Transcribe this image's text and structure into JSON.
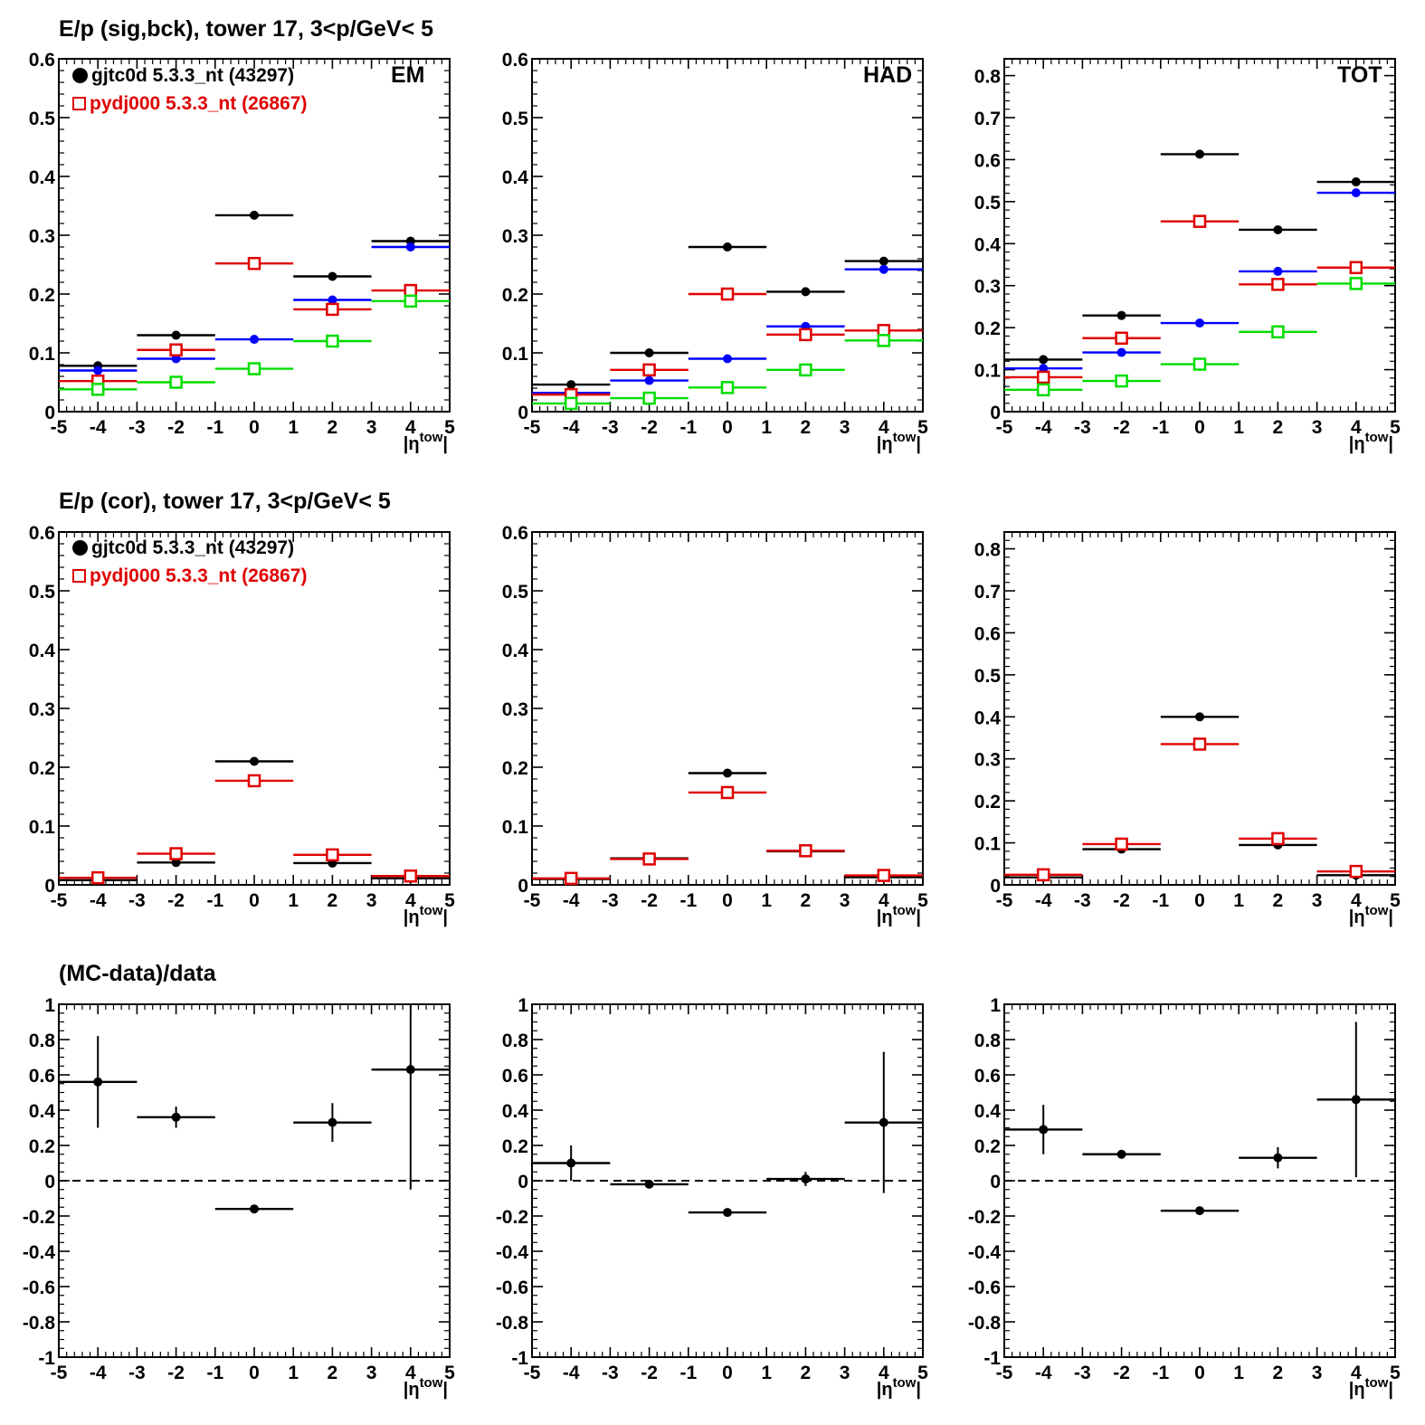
{
  "rows": [
    {
      "title": "E/p (sig,bck), tower 17,  3<p/GeV< 5"
    },
    {
      "title": "E/p (cor), tower 17,  3<p/GeV< 5"
    },
    {
      "title": "(MC-data)/data"
    }
  ],
  "legend": {
    "data_label": "gjtc0d 5.3.3_nt (43297)",
    "mc_label": "pydj000 5.3.3_nt (26867)",
    "data_color": "#000000",
    "mc_color": "#e00000"
  },
  "panel_tags": [
    "EM",
    "HAD",
    "TOT"
  ],
  "colors": {
    "data": "#000000",
    "mc": "#e00000",
    "data_bck": "#0000ff",
    "mc_bck": "#00dd00"
  },
  "chart_data": [
    {
      "type": "scatter",
      "panel": "EM, sig/bck",
      "xlabel": "|η^tow|",
      "xlim": [
        -5,
        5
      ],
      "ylim": [
        0,
        0.6
      ],
      "yticks": [
        "0",
        "0.1",
        "0.2",
        "0.3",
        "0.4",
        "0.5",
        "0.6"
      ],
      "x": [
        -4,
        -2,
        0,
        2,
        4
      ],
      "xerr": 1,
      "series": [
        {
          "name": "gjtc0d 5.3.3_nt (43297)",
          "color": "#000000",
          "marker": "dot",
          "values": [
            0.078,
            0.13,
            0.334,
            0.23,
            0.29
          ]
        },
        {
          "color": "#0000ff",
          "marker": "dot",
          "values": [
            0.07,
            0.09,
            0.123,
            0.19,
            0.28
          ]
        },
        {
          "name": "pydj000 5.3.3_nt (26867)",
          "color": "#e00000",
          "marker": "box",
          "values": [
            0.052,
            0.105,
            0.252,
            0.174,
            0.206
          ]
        },
        {
          "color": "#00dd00",
          "marker": "box",
          "values": [
            0.038,
            0.05,
            0.073,
            0.12,
            0.188
          ]
        }
      ]
    },
    {
      "type": "scatter",
      "panel": "HAD, sig/bck",
      "xlabel": "|η^tow|",
      "xlim": [
        -5,
        5
      ],
      "ylim": [
        0,
        0.6
      ],
      "yticks": [
        "0",
        "0.1",
        "0.2",
        "0.3",
        "0.4",
        "0.5",
        "0.6"
      ],
      "x": [
        -4,
        -2,
        0,
        2,
        4
      ],
      "xerr": 1,
      "series": [
        {
          "color": "#000000",
          "marker": "dot",
          "values": [
            0.046,
            0.1,
            0.28,
            0.204,
            0.256
          ]
        },
        {
          "color": "#0000ff",
          "marker": "dot",
          "values": [
            0.032,
            0.053,
            0.09,
            0.145,
            0.242
          ]
        },
        {
          "color": "#e00000",
          "marker": "box",
          "values": [
            0.029,
            0.071,
            0.2,
            0.131,
            0.138
          ]
        },
        {
          "color": "#00dd00",
          "marker": "box",
          "values": [
            0.014,
            0.023,
            0.041,
            0.071,
            0.121
          ]
        }
      ]
    },
    {
      "type": "scatter",
      "panel": "TOT, sig/bck",
      "xlabel": "|η^tow|",
      "xlim": [
        -5,
        5
      ],
      "ylim": [
        0,
        0.84
      ],
      "yticks": [
        "0",
        "0.1",
        "0.2",
        "0.3",
        "0.4",
        "0.5",
        "0.6",
        "0.7",
        "0.8"
      ],
      "x": [
        -4,
        -2,
        0,
        2,
        4
      ],
      "xerr": 1,
      "series": [
        {
          "color": "#000000",
          "marker": "dot",
          "values": [
            0.124,
            0.229,
            0.613,
            0.433,
            0.547
          ]
        },
        {
          "color": "#0000ff",
          "marker": "dot",
          "values": [
            0.103,
            0.141,
            0.211,
            0.334,
            0.521
          ]
        },
        {
          "color": "#e00000",
          "marker": "box",
          "values": [
            0.082,
            0.175,
            0.453,
            0.303,
            0.343
          ]
        },
        {
          "color": "#00dd00",
          "marker": "box",
          "values": [
            0.052,
            0.073,
            0.113,
            0.19,
            0.305
          ]
        }
      ]
    },
    {
      "type": "scatter",
      "panel": "EM, cor",
      "xlabel": "|η^tow|",
      "xlim": [
        -5,
        5
      ],
      "ylim": [
        0,
        0.6
      ],
      "yticks": [
        "0",
        "0.1",
        "0.2",
        "0.3",
        "0.4",
        "0.5",
        "0.6"
      ],
      "x": [
        -4,
        -2,
        0,
        2,
        4
      ],
      "xerr": 1,
      "series": [
        {
          "name": "gjtc0d 5.3.3_nt (43297)",
          "color": "#000000",
          "marker": "dot",
          "values": [
            0.008,
            0.038,
            0.21,
            0.037,
            0.011
          ]
        },
        {
          "name": "pydj000 5.3.3_nt (26867)",
          "color": "#e00000",
          "marker": "box",
          "values": [
            0.012,
            0.053,
            0.177,
            0.051,
            0.015
          ]
        }
      ]
    },
    {
      "type": "scatter",
      "panel": "HAD, cor",
      "xlabel": "|η^tow|",
      "xlim": [
        -5,
        5
      ],
      "ylim": [
        0,
        0.6
      ],
      "yticks": [
        "0",
        "0.1",
        "0.2",
        "0.3",
        "0.4",
        "0.5",
        "0.6"
      ],
      "x": [
        -4,
        -2,
        0,
        2,
        4
      ],
      "xerr": 1,
      "series": [
        {
          "color": "#000000",
          "marker": "dot",
          "values": [
            0.01,
            0.045,
            0.19,
            0.057,
            0.013
          ]
        },
        {
          "color": "#e00000",
          "marker": "box",
          "values": [
            0.011,
            0.044,
            0.157,
            0.058,
            0.016
          ]
        }
      ]
    },
    {
      "type": "scatter",
      "panel": "TOT, cor",
      "xlabel": "|η^tow|",
      "xlim": [
        -5,
        5
      ],
      "ylim": [
        0,
        0.84
      ],
      "yticks": [
        "0",
        "0.1",
        "0.2",
        "0.3",
        "0.4",
        "0.5",
        "0.6",
        "0.7",
        "0.8"
      ],
      "x": [
        -4,
        -2,
        0,
        2,
        4
      ],
      "xerr": 1,
      "series": [
        {
          "color": "#000000",
          "marker": "dot",
          "values": [
            0.018,
            0.085,
            0.4,
            0.095,
            0.023
          ]
        },
        {
          "color": "#e00000",
          "marker": "box",
          "values": [
            0.024,
            0.097,
            0.335,
            0.11,
            0.032
          ]
        }
      ]
    },
    {
      "type": "scatter",
      "panel": "EM, (MC-data)/data",
      "xlabel": "|η^tow|",
      "xlim": [
        -5,
        5
      ],
      "ylim": [
        -1,
        1
      ],
      "reference_line": 0,
      "yticks": [
        "-1",
        "-0.8",
        "-0.6",
        "-0.4",
        "-0.2",
        "0",
        "0.2",
        "0.4",
        "0.6",
        "0.8",
        "1"
      ],
      "x": [
        -4,
        -2,
        0,
        2,
        4
      ],
      "xerr": 1,
      "series": [
        {
          "color": "#000000",
          "marker": "dot",
          "values": [
            0.56,
            0.36,
            -0.16,
            0.33,
            0.63
          ],
          "yerr": [
            0.26,
            0.06,
            0.01,
            0.11,
            0.68
          ]
        }
      ]
    },
    {
      "type": "scatter",
      "panel": "HAD, (MC-data)/data",
      "xlabel": "|η^tow|",
      "xlim": [
        -5,
        5
      ],
      "ylim": [
        -1,
        1
      ],
      "reference_line": 0,
      "yticks": [
        "-1",
        "-0.8",
        "-0.6",
        "-0.4",
        "-0.2",
        "0",
        "0.2",
        "0.4",
        "0.6",
        "0.8",
        "1"
      ],
      "x": [
        -4,
        -2,
        0,
        2,
        4
      ],
      "xerr": 1,
      "series": [
        {
          "color": "#000000",
          "marker": "dot",
          "values": [
            0.1,
            -0.02,
            -0.18,
            0.01,
            0.33
          ],
          "yerr": [
            0.1,
            0.02,
            0.01,
            0.04,
            0.4
          ]
        }
      ]
    },
    {
      "type": "scatter",
      "panel": "TOT, (MC-data)/data",
      "xlabel": "|η^tow|",
      "xlim": [
        -5,
        5
      ],
      "ylim": [
        -1,
        1
      ],
      "reference_line": 0,
      "yticks": [
        "-1",
        "-0.8",
        "-0.6",
        "-0.4",
        "-0.2",
        "0",
        "0.2",
        "0.4",
        "0.6",
        "0.8",
        "1"
      ],
      "x": [
        -4,
        -2,
        0,
        2,
        4
      ],
      "xerr": 1,
      "series": [
        {
          "color": "#000000",
          "marker": "dot",
          "values": [
            0.29,
            0.15,
            -0.17,
            0.13,
            0.46
          ],
          "yerr": [
            0.14,
            0.02,
            0.01,
            0.06,
            0.44
          ]
        }
      ]
    }
  ]
}
